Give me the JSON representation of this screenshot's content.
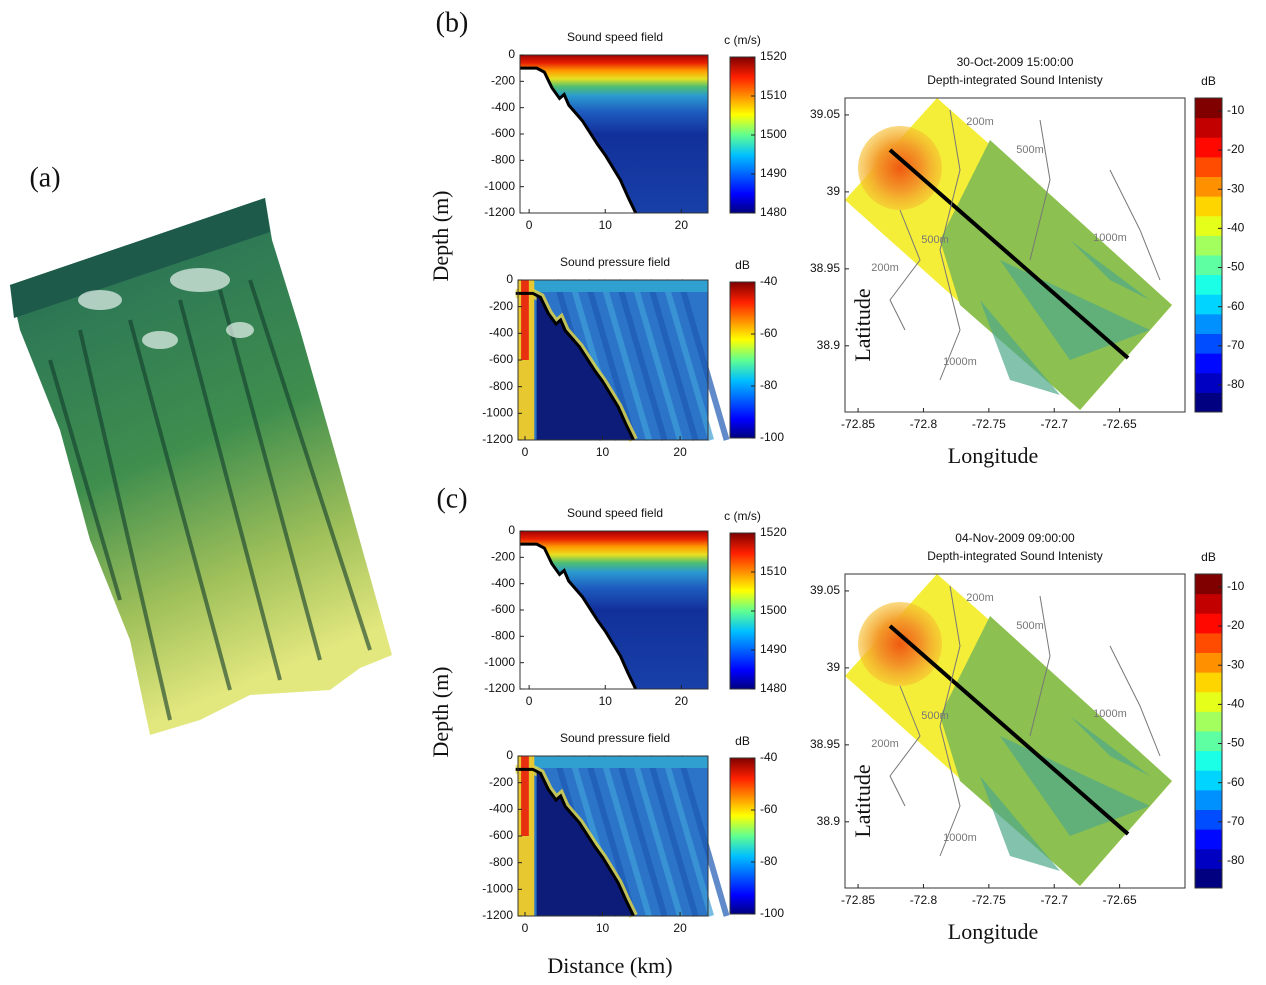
{
  "panels": [
    {
      "label": "(a)"
    },
    {
      "label": "(b)",
      "depth_label": "Depth (m)",
      "speed": {
        "title": "Sound speed field",
        "xlim": [
          -1.2,
          23.5
        ],
        "xticks": [
          0,
          10,
          20
        ],
        "ylim": [
          -1200,
          0
        ],
        "yticks": [
          0,
          -200,
          -400,
          -600,
          -800,
          -1000,
          -1200
        ],
        "colorbar": {
          "label": "c (m/s)",
          "lim": [
            1480,
            1520
          ],
          "ticks": [
            1520,
            1510,
            1500,
            1490,
            1480
          ]
        }
      },
      "pressure": {
        "title": "Sound pressure field",
        "xlim": [
          -0.9,
          23.6
        ],
        "xticks": [
          0,
          10,
          20
        ],
        "ylim": [
          -1200,
          0
        ],
        "yticks": [
          0,
          -200,
          -400,
          -600,
          -800,
          -1000,
          -1200
        ],
        "colorbar": {
          "label": "dB",
          "lim": [
            -100,
            -40
          ],
          "ticks": [
            -40,
            -60,
            -80,
            -100
          ]
        }
      },
      "map": {
        "title": "30-Oct-2009 15:00:00",
        "subtitle": "Depth-integrated Sound Intenisty",
        "xlabel": "Longitude",
        "ylabel": "Latitude",
        "xlim": [
          -72.86,
          -72.6
        ],
        "xticks": [
          -72.85,
          -72.8,
          -72.75,
          -72.7,
          -72.65
        ],
        "ylim": [
          38.857,
          39.061
        ],
        "yticks": [
          39.05,
          39,
          38.95,
          38.9
        ],
        "colorbar": {
          "label": "dB",
          "lim": [
            -86.9,
            -6.7
          ],
          "ticks": [
            -10,
            -20,
            -30,
            -40,
            -50,
            -60,
            -70,
            -80
          ]
        },
        "contours": [
          "200m",
          "500m",
          "500m",
          "1000m",
          "200m",
          "1000m"
        ]
      }
    },
    {
      "label": "(c)",
      "depth_label": "Depth (m)",
      "distance_label": "Distance (km)",
      "speed": {
        "title": "Sound speed field",
        "xlim": [
          -1.2,
          23.5
        ],
        "xticks": [
          0,
          10,
          20
        ],
        "ylim": [
          -1200,
          0
        ],
        "yticks": [
          0,
          -200,
          -400,
          -600,
          -800,
          -1000,
          -1200
        ],
        "colorbar": {
          "label": "c (m/s)",
          "lim": [
            1480,
            1520
          ],
          "ticks": [
            1520,
            1510,
            1500,
            1490,
            1480
          ]
        }
      },
      "pressure": {
        "title": "Sound pressure field",
        "xlim": [
          -0.9,
          23.6
        ],
        "xticks": [
          0,
          10,
          20
        ],
        "ylim": [
          -1200,
          0
        ],
        "yticks": [
          0,
          -200,
          -400,
          -600,
          -800,
          -1000,
          -1200
        ],
        "colorbar": {
          "label": "dB",
          "lim": [
            -100,
            -40
          ],
          "ticks": [
            -40,
            -60,
            -80,
            -100
          ]
        }
      },
      "map": {
        "title": "04-Nov-2009 09:00:00",
        "subtitle": "Depth-integrated Sound Intenisty",
        "xlabel": "Longitude",
        "ylabel": "Latitude",
        "xlim": [
          -72.86,
          -72.6
        ],
        "xticks": [
          -72.85,
          -72.8,
          -72.75,
          -72.7,
          -72.65
        ],
        "ylim": [
          38.857,
          39.061
        ],
        "yticks": [
          39.05,
          39,
          38.95,
          38.9
        ],
        "colorbar": {
          "label": "dB",
          "lim": [
            -86.9,
            -6.7
          ],
          "ticks": [
            -10,
            -20,
            -30,
            -40,
            -50,
            -60,
            -70,
            -80
          ]
        },
        "contours": [
          "200m",
          "500m",
          "500m",
          "1000m",
          "200m",
          "1000m"
        ]
      }
    }
  ]
}
